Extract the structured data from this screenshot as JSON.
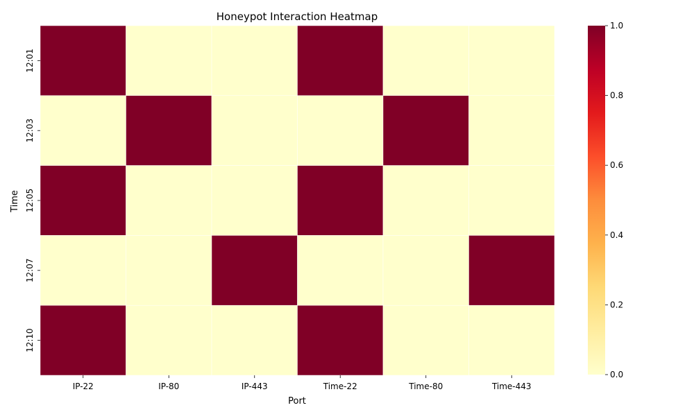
{
  "chart_data": {
    "type": "heatmap",
    "title": "Honeypot Interaction Heatmap",
    "xlabel": "Port",
    "ylabel": "Time",
    "x_categories": [
      "IP-22",
      "IP-80",
      "IP-443",
      "Time-22",
      "Time-80",
      "Time-443"
    ],
    "y_categories": [
      "12:01",
      "12:03",
      "12:05",
      "12:07",
      "12:10"
    ],
    "values": [
      [
        1,
        0,
        0,
        1,
        0,
        0
      ],
      [
        0,
        1,
        0,
        0,
        1,
        0
      ],
      [
        1,
        0,
        0,
        1,
        0,
        0
      ],
      [
        0,
        0,
        1,
        0,
        0,
        1
      ],
      [
        1,
        0,
        0,
        1,
        0,
        0
      ]
    ],
    "colormap": "YlOrRd",
    "colorbar": {
      "range": [
        0,
        1
      ],
      "ticks": [
        "0.0",
        "0.2",
        "0.4",
        "0.6",
        "0.8",
        "1.0"
      ],
      "gradient": [
        "#ffffcc",
        "#ffeda0",
        "#fed976",
        "#feb24c",
        "#fd8d3c",
        "#fc4e2a",
        "#e31a1c",
        "#bd0026",
        "#800026"
      ]
    },
    "grid": false,
    "cell_border_color": "#ffffff"
  }
}
